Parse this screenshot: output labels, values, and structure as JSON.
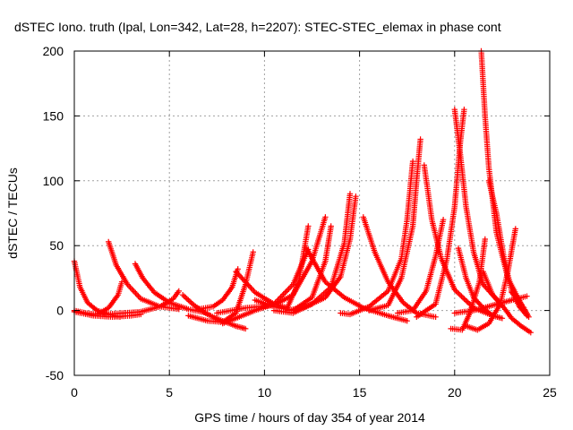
{
  "chart_data": {
    "type": "scatter",
    "title": "dSTEC Iono. truth (Ipal, Lon=342, Lat=28, h=2207): STEC-STEC_elemax in phase cont",
    "xlabel": "GPS time / hours of day 354 of year 2014",
    "ylabel": "dSTEC  / TECUs",
    "xlim": [
      0,
      25
    ],
    "ylim": [
      -50,
      200
    ],
    "xticks": [
      0,
      5,
      10,
      15,
      20,
      25
    ],
    "yticks": [
      -50,
      0,
      50,
      100,
      150,
      200
    ],
    "xtick_labels": [
      "0",
      "5",
      "10",
      "15",
      "20",
      "25"
    ],
    "ytick_labels": [
      "-50",
      "0",
      "50",
      "100",
      "150",
      "200"
    ],
    "grid": true,
    "legend": "none",
    "marker": "plus",
    "color": "#ff0000",
    "series": [
      {
        "x": [
          0.0,
          0.3,
          0.7,
          1.2,
          1.8,
          2.4
        ],
        "y": [
          38,
          18,
          6,
          0,
          -3,
          -5
        ]
      },
      {
        "x": [
          0.0,
          0.6,
          1.2,
          1.8,
          2.3,
          2.5
        ],
        "y": [
          0,
          -2,
          -3,
          2,
          12,
          22
        ]
      },
      {
        "x": [
          0.0,
          1.0,
          2.0,
          3.0,
          3.5
        ],
        "y": [
          -1,
          -4,
          -5,
          -4,
          -3
        ]
      },
      {
        "x": [
          1.8,
          2.2,
          2.8,
          3.5,
          4.5,
          5.5
        ],
        "y": [
          53,
          35,
          20,
          9,
          3,
          1
        ]
      },
      {
        "x": [
          3.2,
          3.6,
          4.2,
          5.0,
          6.0,
          7.0
        ],
        "y": [
          36,
          25,
          14,
          6,
          1,
          -2
        ]
      },
      {
        "x": [
          1.5,
          2.5,
          3.5,
          4.5,
          5.2,
          5.5
        ],
        "y": [
          -3,
          -2,
          -1,
          3,
          9,
          15
        ]
      },
      {
        "x": [
          5.7,
          6.3,
          7.0,
          7.8,
          8.5,
          9.0
        ],
        "y": [
          12,
          4,
          -3,
          -8,
          -12,
          -14
        ]
      },
      {
        "x": [
          6.0,
          7.0,
          7.8,
          8.5,
          9.0,
          9.4
        ],
        "y": [
          -4,
          -8,
          -9,
          -2,
          20,
          45
        ]
      },
      {
        "x": [
          6.5,
          7.3,
          7.8,
          8.3,
          8.6
        ],
        "y": [
          1,
          3,
          8,
          18,
          32
        ]
      },
      {
        "x": [
          7.8,
          8.5,
          9.5,
          10.5,
          11.5,
          12.3
        ],
        "y": [
          -10,
          -6,
          0,
          5,
          20,
          47
        ]
      },
      {
        "x": [
          8.5,
          9.5,
          10.5,
          11.2,
          11.8,
          12.3
        ],
        "y": [
          30,
          14,
          5,
          2,
          22,
          65
        ]
      },
      {
        "x": [
          7.5,
          9.0,
          10.5,
          11.5,
          12.5,
          13.2
        ],
        "y": [
          -2,
          2,
          4,
          12,
          38,
          72
        ]
      },
      {
        "x": [
          9.5,
          10.5,
          11.5,
          12.5,
          13.2,
          13.5
        ],
        "y": [
          8,
          3,
          0,
          10,
          38,
          65
        ]
      },
      {
        "x": [
          10.5,
          11.5,
          12.5,
          13.5,
          14.2,
          14.5
        ],
        "y": [
          0,
          -2,
          5,
          18,
          52,
          90
        ]
      },
      {
        "x": [
          11.2,
          12.2,
          13.2,
          14.0,
          14.5,
          14.8
        ],
        "y": [
          0,
          3,
          10,
          26,
          55,
          88
        ]
      },
      {
        "x": [
          12.2,
          13.2,
          14.2,
          15.2,
          16.5,
          17.5
        ],
        "y": [
          48,
          22,
          10,
          2,
          -4,
          -8
        ]
      },
      {
        "x": [
          14.0,
          14.5,
          15.5,
          16.5,
          17.2,
          17.5,
          17.8
        ],
        "y": [
          -2,
          -3,
          3,
          15,
          40,
          70,
          115
        ]
      },
      {
        "x": [
          15.5,
          16.5,
          17.2,
          17.8,
          18.0,
          18.2
        ],
        "y": [
          0,
          4,
          25,
          65,
          100,
          132
        ]
      },
      {
        "x": [
          15.2,
          15.8,
          16.5,
          17.3,
          18.0,
          19.0
        ],
        "y": [
          72,
          45,
          22,
          6,
          -2,
          -5
        ]
      },
      {
        "x": [
          17.0,
          17.8,
          18.5,
          19.0,
          19.4
        ],
        "y": [
          -2,
          0,
          15,
          42,
          70
        ]
      },
      {
        "x": [
          18.4,
          18.8,
          19.3,
          20.0,
          21.0,
          22.0
        ],
        "y": [
          112,
          70,
          40,
          16,
          2,
          -4
        ]
      },
      {
        "x": [
          18.0,
          19.0,
          19.6,
          20.0,
          20.3,
          20.5
        ],
        "y": [
          -5,
          5,
          40,
          80,
          130,
          155
        ]
      },
      {
        "x": [
          20.0,
          20.3,
          20.6,
          21.0,
          21.5,
          22.5
        ],
        "y": [
          155,
          120,
          80,
          45,
          20,
          4
        ]
      },
      {
        "x": [
          20.2,
          20.6,
          21.0,
          21.5,
          22.0,
          22.5
        ],
        "y": [
          48,
          25,
          10,
          2,
          -4,
          -6
        ]
      },
      {
        "x": [
          19.8,
          20.4,
          20.8,
          21.3,
          21.6
        ],
        "y": [
          -14,
          -15,
          -2,
          22,
          55
        ]
      },
      {
        "x": [
          21.4,
          21.6,
          21.8,
          22.2,
          22.8,
          23.5
        ],
        "y": [
          200,
          150,
          110,
          60,
          25,
          5
        ]
      },
      {
        "x": [
          20.6,
          21.2,
          21.8,
          22.4,
          22.8,
          23.2
        ],
        "y": [
          -12,
          -15,
          -10,
          5,
          30,
          63
        ]
      },
      {
        "x": [
          20.0,
          21.0,
          22.0,
          23.0,
          23.8
        ],
        "y": [
          -2,
          0,
          4,
          8,
          11
        ]
      },
      {
        "x": [
          21.8,
          22.2,
          22.6,
          23.0,
          23.4,
          23.8
        ],
        "y": [
          100,
          75,
          40,
          15,
          3,
          -4
        ]
      },
      {
        "x": [
          21.5,
          22.0,
          22.6,
          23.0,
          23.5,
          24.0
        ],
        "y": [
          30,
          12,
          2,
          -6,
          -12,
          -17
        ]
      },
      {
        "x": [
          23.0,
          23.3,
          23.6,
          23.9
        ],
        "y": [
          14,
          9,
          3,
          -5
        ]
      }
    ]
  }
}
